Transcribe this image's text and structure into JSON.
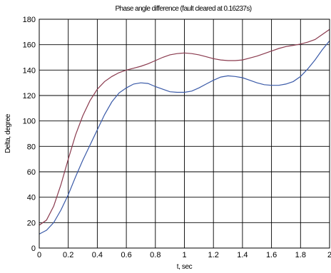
{
  "chart_data": {
    "type": "line",
    "title": "Phase angle difference (fault cleared at 0.16237s)",
    "xlabel": "t, sec",
    "ylabel": "Delta, degree",
    "xlim": [
      0,
      2
    ],
    "ylim": [
      0,
      180
    ],
    "xticks": [
      0,
      0.2,
      0.4,
      0.6,
      0.8,
      1,
      1.2,
      1.4,
      1.6,
      1.8,
      2
    ],
    "yticks": [
      0,
      20,
      40,
      60,
      80,
      100,
      120,
      140,
      160,
      180
    ],
    "grid": true,
    "series": [
      {
        "color": "#8a3a4e",
        "x": [
          0,
          0.05,
          0.1,
          0.15,
          0.2,
          0.25,
          0.3,
          0.35,
          0.4,
          0.45,
          0.5,
          0.55,
          0.6,
          0.65,
          0.7,
          0.75,
          0.8,
          0.85,
          0.9,
          0.95,
          1.0,
          1.05,
          1.1,
          1.15,
          1.2,
          1.25,
          1.3,
          1.35,
          1.4,
          1.45,
          1.5,
          1.55,
          1.6,
          1.65,
          1.7,
          1.75,
          1.8,
          1.85,
          1.9,
          1.95,
          2.0
        ],
        "y": [
          18,
          22,
          33,
          50,
          70,
          89,
          104,
          116,
          125,
          131,
          135,
          138,
          140,
          141.5,
          143,
          145,
          147.5,
          150,
          152,
          153,
          153.5,
          153,
          152,
          150.5,
          149,
          148,
          147.5,
          147.5,
          148,
          149.5,
          151,
          153,
          155,
          157,
          158.5,
          159.5,
          160.5,
          162,
          164,
          168,
          172
        ]
      },
      {
        "color": "#3a5aa8",
        "x": [
          0,
          0.05,
          0.1,
          0.15,
          0.2,
          0.25,
          0.3,
          0.35,
          0.4,
          0.45,
          0.5,
          0.55,
          0.6,
          0.65,
          0.7,
          0.75,
          0.8,
          0.85,
          0.9,
          0.95,
          1.0,
          1.05,
          1.1,
          1.15,
          1.2,
          1.25,
          1.3,
          1.35,
          1.4,
          1.45,
          1.5,
          1.55,
          1.6,
          1.65,
          1.7,
          1.75,
          1.8,
          1.85,
          1.9,
          1.95,
          2.0
        ],
        "y": [
          11,
          14,
          20,
          30,
          42,
          56,
          69,
          81,
          93,
          105,
          115,
          122,
          126,
          129,
          130,
          129.5,
          127,
          125,
          123,
          122.5,
          122.5,
          123.5,
          126,
          129,
          132,
          134.5,
          135.5,
          135,
          134,
          132,
          130,
          128.5,
          128,
          128,
          129,
          131,
          135,
          141,
          148,
          156,
          163
        ]
      }
    ]
  }
}
